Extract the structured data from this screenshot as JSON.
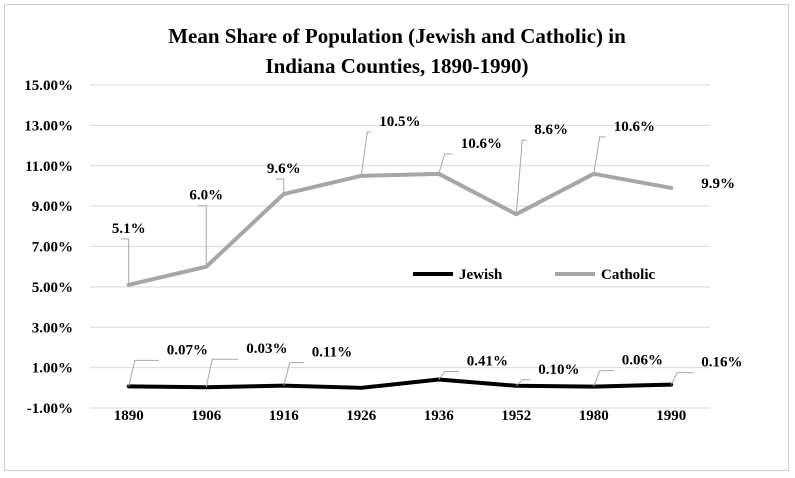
{
  "chart_data": {
    "type": "line",
    "title_lines": [
      "Mean Share of Population (Jewish and Catholic) in",
      "Indiana Counties, 1890-1990)"
    ],
    "categories": [
      "1890",
      "1906",
      "1916",
      "1926",
      "1936",
      "1952",
      "1980",
      "1990"
    ],
    "y_ticks": [
      "15.00%",
      "13.00%",
      "11.00%",
      "9.00%",
      "7.00%",
      "5.00%",
      "3.00%",
      "1.00%",
      "-1.00%"
    ],
    "ylim": [
      -1,
      15
    ],
    "grid": true,
    "legend_position": "inside-center-right",
    "series": [
      {
        "name": "Jewish",
        "color": "#000000",
        "values": [
          0.07,
          0.03,
          0.11,
          0.0,
          0.41,
          0.1,
          0.06,
          0.16
        ],
        "labels": [
          "0.07%",
          "0.03%",
          "0.11%",
          "",
          "0.41%",
          "0.10%",
          "0.06%",
          "0.16%"
        ]
      },
      {
        "name": "Catholic",
        "color": "#a6a6a6",
        "values": [
          5.1,
          6.0,
          9.6,
          10.5,
          10.6,
          8.6,
          10.6,
          9.9
        ],
        "labels": [
          "5.1%",
          "6.0%",
          "9.6%",
          "10.5%",
          "10.6%",
          "8.6%",
          "10.6%",
          "9.9%"
        ]
      }
    ]
  }
}
